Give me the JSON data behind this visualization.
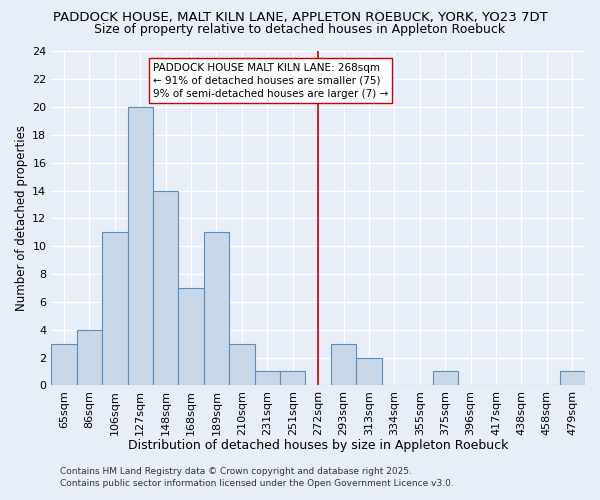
{
  "title": "PADDOCK HOUSE, MALT KILN LANE, APPLETON ROEBUCK, YORK, YO23 7DT",
  "subtitle": "Size of property relative to detached houses in Appleton Roebuck",
  "xlabel": "Distribution of detached houses by size in Appleton Roebuck",
  "ylabel": "Number of detached properties",
  "bin_labels": [
    "65sqm",
    "86sqm",
    "106sqm",
    "127sqm",
    "148sqm",
    "168sqm",
    "189sqm",
    "210sqm",
    "231sqm",
    "251sqm",
    "272sqm",
    "293sqm",
    "313sqm",
    "334sqm",
    "355sqm",
    "375sqm",
    "396sqm",
    "417sqm",
    "438sqm",
    "458sqm",
    "479sqm"
  ],
  "bar_heights": [
    3,
    4,
    11,
    20,
    14,
    7,
    11,
    3,
    1,
    1,
    0,
    3,
    2,
    0,
    0,
    1,
    0,
    0,
    0,
    0,
    1
  ],
  "bar_color": "#c8d8e8",
  "bar_edge_color": "#5b8db8",
  "vline_x_index": 10,
  "vline_color": "#cc0000",
  "ylim": [
    0,
    24
  ],
  "yticks": [
    0,
    2,
    4,
    6,
    8,
    10,
    12,
    14,
    16,
    18,
    20,
    22,
    24
  ],
  "annotation_text": "PADDOCK HOUSE MALT KILN LANE: 268sqm\n← 91% of detached houses are smaller (75)\n9% of semi-detached houses are larger (7) →",
  "footer1": "Contains HM Land Registry data © Crown copyright and database right 2025.",
  "footer2": "Contains public sector information licensed under the Open Government Licence v3.0.",
  "bg_color": "#e8eef8",
  "grid_color": "#ffffff",
  "title_fontsize": 9.5,
  "subtitle_fontsize": 9.0,
  "ylabel_fontsize": 8.5,
  "xlabel_fontsize": 9.0,
  "tick_fontsize": 8.0,
  "annot_fontsize": 7.5,
  "footer_fontsize": 6.5
}
